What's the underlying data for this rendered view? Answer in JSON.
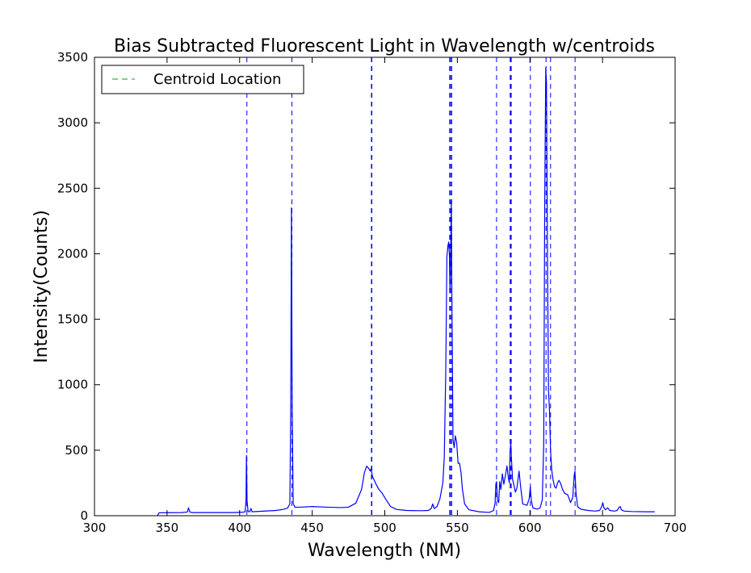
{
  "chart_data": {
    "type": "line",
    "title": "Bias Subtracted Fluorescent Light in Wavelength w/centroids",
    "xlabel": "Wavelength (NM)",
    "ylabel": "Intensity(Counts)",
    "xlim": [
      300,
      700
    ],
    "ylim": [
      0,
      3500
    ],
    "xticks": [
      300,
      350,
      400,
      450,
      500,
      550,
      600,
      650,
      700
    ],
    "yticks": [
      0,
      500,
      1000,
      1500,
      2000,
      2500,
      3000,
      3500
    ],
    "grid": false,
    "legend": {
      "position": "top-left",
      "entries": [
        {
          "label": "Centroid Location",
          "style": "dashed",
          "color": "#00aa00"
        }
      ]
    },
    "series": [
      {
        "color": "#0000ff",
        "style": "solid",
        "points": [
          [
            343.5,
            3
          ],
          [
            344.5,
            22
          ],
          [
            350,
            23
          ],
          [
            360,
            24
          ],
          [
            364,
            28
          ],
          [
            364.8,
            60
          ],
          [
            365.6,
            30
          ],
          [
            367,
            24
          ],
          [
            380,
            24
          ],
          [
            395,
            24
          ],
          [
            402,
            26
          ],
          [
            403.8,
            30
          ],
          [
            404.4,
            120
          ],
          [
            404.7,
            460
          ],
          [
            405.1,
            120
          ],
          [
            405.8,
            32
          ],
          [
            407,
            30
          ],
          [
            407.8,
            55
          ],
          [
            408.6,
            30
          ],
          [
            415,
            34
          ],
          [
            425,
            40
          ],
          [
            430,
            48
          ],
          [
            433,
            58
          ],
          [
            434.6,
            90
          ],
          [
            435.2,
            800
          ],
          [
            435.7,
            2350
          ],
          [
            436.2,
            800
          ],
          [
            436.9,
            95
          ],
          [
            438,
            65
          ],
          [
            442,
            65
          ],
          [
            450,
            70
          ],
          [
            460,
            65
          ],
          [
            470,
            62
          ],
          [
            475,
            65
          ],
          [
            480,
            95
          ],
          [
            484,
            200
          ],
          [
            486,
            330
          ],
          [
            487.5,
            378
          ],
          [
            489,
            360
          ],
          [
            490,
            340
          ],
          [
            490.6,
            360
          ],
          [
            491.5,
            300
          ],
          [
            494,
            240
          ],
          [
            496,
            200
          ],
          [
            498,
            175
          ],
          [
            501,
            120
          ],
          [
            504,
            70
          ],
          [
            508,
            48
          ],
          [
            515,
            40
          ],
          [
            525,
            38
          ],
          [
            530,
            40
          ],
          [
            532,
            55
          ],
          [
            533,
            90
          ],
          [
            534,
            55
          ],
          [
            536,
            70
          ],
          [
            538,
            130
          ],
          [
            540,
            250
          ],
          [
            541,
            450
          ],
          [
            542,
            1100
          ],
          [
            542.8,
            1980
          ],
          [
            543.5,
            2060
          ],
          [
            544,
            2090
          ],
          [
            544.5,
            2000
          ],
          [
            545,
            1700
          ],
          [
            545.4,
            2000
          ],
          [
            545.8,
            2400
          ],
          [
            546.2,
            1700
          ],
          [
            547,
            580
          ],
          [
            547.8,
            520
          ],
          [
            548.6,
            610
          ],
          [
            549.5,
            560
          ],
          [
            550.5,
            400
          ],
          [
            551.5,
            400
          ],
          [
            552.5,
            330
          ],
          [
            553.5,
            200
          ],
          [
            555,
            90
          ],
          [
            558,
            45
          ],
          [
            565,
            30
          ],
          [
            572,
            25
          ],
          [
            575,
            40
          ],
          [
            576,
            100
          ],
          [
            576.5,
            240
          ],
          [
            577,
            260
          ],
          [
            577.6,
            120
          ],
          [
            578.5,
            100
          ],
          [
            579.2,
            260
          ],
          [
            580,
            200
          ],
          [
            581,
            320
          ],
          [
            582,
            240
          ],
          [
            583,
            300
          ],
          [
            584.2,
            380
          ],
          [
            585,
            300
          ],
          [
            585.8,
            250
          ],
          [
            586.3,
            480
          ],
          [
            586.8,
            560
          ],
          [
            587.3,
            430
          ],
          [
            588,
            280
          ],
          [
            589,
            230
          ],
          [
            590,
            180
          ],
          [
            591,
            210
          ],
          [
            592.5,
            340
          ],
          [
            593.5,
            230
          ],
          [
            595,
            90
          ],
          [
            598,
            80
          ],
          [
            599.5,
            130
          ],
          [
            600.2,
            220
          ],
          [
            600.9,
            120
          ],
          [
            602,
            60
          ],
          [
            605,
            50
          ],
          [
            607,
            60
          ],
          [
            608.5,
            120
          ],
          [
            609.5,
            550
          ],
          [
            610.2,
            2400
          ],
          [
            610.9,
            3420
          ],
          [
            611.4,
            3300
          ],
          [
            612,
            2100
          ],
          [
            612.8,
            950
          ],
          [
            613.5,
            800
          ],
          [
            614.2,
            500
          ],
          [
            615,
            350
          ],
          [
            616,
            270
          ],
          [
            617,
            220
          ],
          [
            618,
            210
          ],
          [
            619,
            250
          ],
          [
            620,
            270
          ],
          [
            621,
            250
          ],
          [
            622.5,
            200
          ],
          [
            624,
            170
          ],
          [
            626,
            160
          ],
          [
            628,
            100
          ],
          [
            629.5,
            140
          ],
          [
            630.5,
            310
          ],
          [
            631,
            340
          ],
          [
            631.7,
            180
          ],
          [
            632.8,
            70
          ],
          [
            635,
            50
          ],
          [
            640,
            40
          ],
          [
            645,
            35
          ],
          [
            648,
            40
          ],
          [
            649.5,
            70
          ],
          [
            650.2,
            100
          ],
          [
            651,
            60
          ],
          [
            652,
            45
          ],
          [
            653.5,
            60
          ],
          [
            655,
            40
          ],
          [
            658,
            35
          ],
          [
            660,
            40
          ],
          [
            661.5,
            65
          ],
          [
            662.2,
            70
          ],
          [
            663,
            45
          ],
          [
            665,
            35
          ],
          [
            670,
            32
          ],
          [
            680,
            30
          ],
          [
            686,
            30
          ]
        ]
      }
    ],
    "centroids": [
      405.0,
      436.0,
      490.8,
      491.1,
      544.7,
      545.0,
      545.8,
      546.1,
      577.0,
      586.4,
      586.8,
      587.1,
      600.3,
      611.1,
      614.2,
      631.1
    ]
  }
}
